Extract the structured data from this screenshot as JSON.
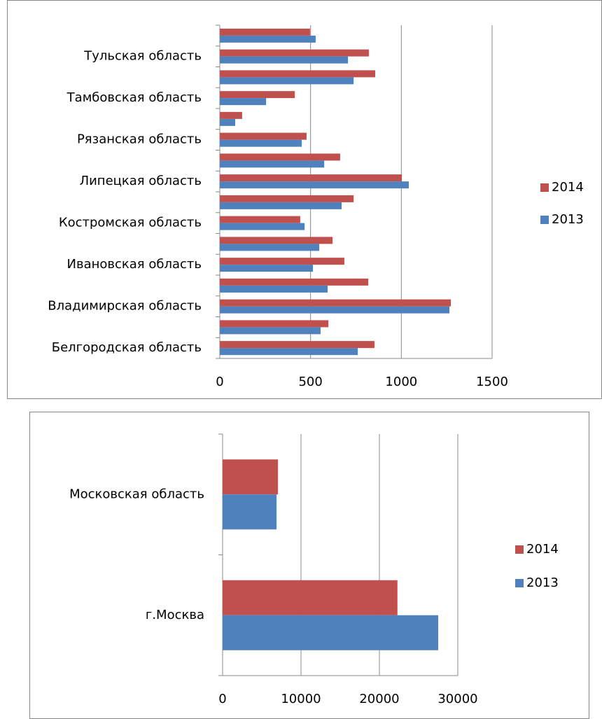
{
  "chart_data": [
    {
      "type": "hbar",
      "categories": [
        "Белгородская область",
        null,
        "Владимирская область",
        null,
        "Ивановская область",
        null,
        "Костромская область",
        null,
        "Липецкая область",
        null,
        "Рязанская область",
        null,
        "Тамбовская область",
        null,
        "Тульская область",
        null
      ],
      "series": [
        {
          "name": "2014",
          "color": "#c0504d",
          "values": [
            852,
            598,
            1273,
            818,
            686,
            621,
            443,
            737,
            1003,
            663,
            478,
            123,
            413,
            856,
            821,
            497
          ]
        },
        {
          "name": "2013",
          "color": "#4f81bd",
          "values": [
            760,
            555,
            1265,
            594,
            513,
            548,
            467,
            671,
            1041,
            575,
            451,
            85,
            255,
            737,
            706,
            528
          ]
        }
      ],
      "xlim": [
        0,
        1500
      ],
      "xticks": [
        0,
        500,
        1000,
        1500
      ],
      "grid": true,
      "legend": "right"
    },
    {
      "type": "hbar",
      "categories": [
        "г.Москва",
        "Московская область"
      ],
      "series": [
        {
          "name": "2014",
          "color": "#c0504d",
          "values": [
            22300,
            7050
          ]
        },
        {
          "name": "2013",
          "color": "#4f81bd",
          "values": [
            27500,
            6880
          ]
        }
      ],
      "xlim": [
        0,
        30000
      ],
      "xticks": [
        0,
        10000,
        20000,
        30000
      ],
      "grid": true,
      "legend": "right"
    }
  ]
}
